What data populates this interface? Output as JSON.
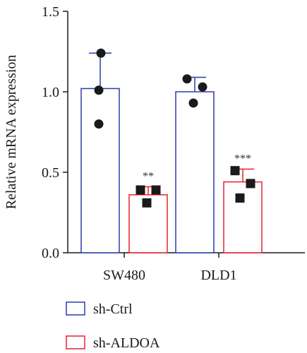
{
  "chart_data": {
    "type": "bar",
    "ylabel": "Relative mRNA expression",
    "xlabel": "",
    "ylim": [
      0,
      1.5
    ],
    "yticks": [
      "0.0",
      "0.5",
      "1.0",
      "1.5"
    ],
    "categories": [
      "SW480",
      "DLD1"
    ],
    "series": [
      {
        "name": "sh-Ctrl",
        "color": "#2b3cb0",
        "marker": "circle",
        "values": [
          1.02,
          1.0
        ],
        "error": [
          0.22,
          0.09
        ],
        "points": [
          [
            1.24,
            1.01,
            0.8
          ],
          [
            1.08,
            1.03,
            0.93
          ]
        ]
      },
      {
        "name": "sh-ALDOA",
        "color": "#e8222a",
        "marker": "square",
        "values": [
          0.36,
          0.44
        ],
        "error": [
          0.05,
          0.08
        ],
        "points": [
          [
            0.39,
            0.39,
            0.31
          ],
          [
            0.51,
            0.43,
            0.34
          ]
        ]
      }
    ],
    "annotations": [
      "**",
      "***"
    ],
    "legend_position": "bottom-left",
    "grid": false
  }
}
